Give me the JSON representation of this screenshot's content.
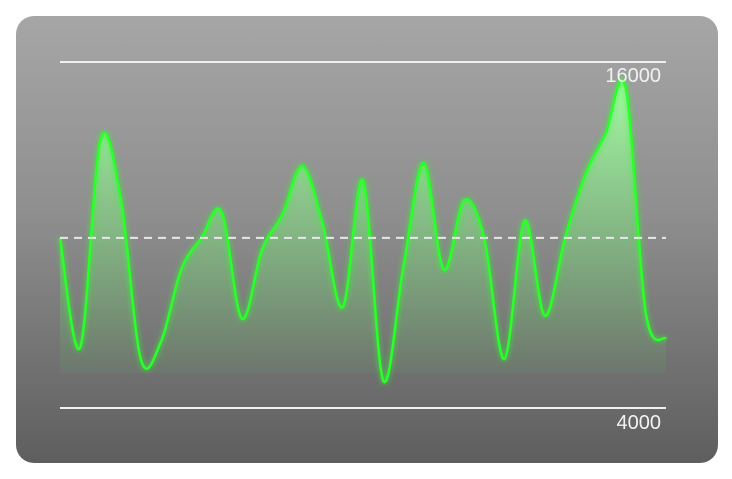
{
  "chart_data": {
    "type": "area",
    "y_max_label": "16000",
    "y_min_label": "4000",
    "ylim": [
      4000,
      16000
    ],
    "reference_value": 9900,
    "x": [
      0,
      1,
      2,
      3,
      4,
      5,
      6,
      7,
      8,
      9,
      10,
      11,
      12,
      13,
      14,
      15,
      16,
      17,
      18,
      19,
      20,
      21,
      22,
      23,
      24,
      25,
      26,
      27,
      28,
      29,
      30
    ],
    "values": [
      9900,
      6100,
      13300,
      11300,
      5700,
      6300,
      8800,
      9900,
      10800,
      7100,
      9500,
      10700,
      12400,
      10400,
      7500,
      11900,
      4950,
      8900,
      12500,
      8800,
      11200,
      9900,
      5700,
      10500,
      7200,
      9900,
      12100,
      13500,
      15100,
      7300,
      6400
    ],
    "colors": {
      "line": "#2bff2b",
      "fill_top": "#a6ffa6",
      "fill_bottom": "#56c456",
      "ref_line": "#e8e8e8"
    },
    "grid": false
  }
}
